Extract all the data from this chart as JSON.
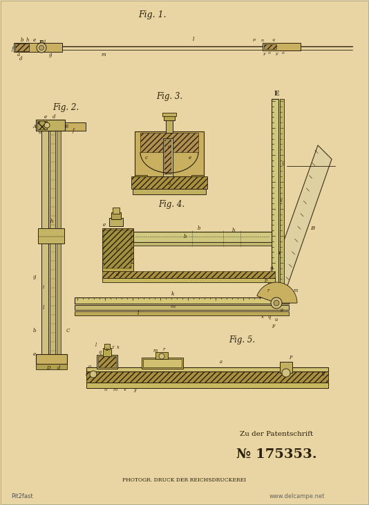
{
  "bg_color": "#e8d5a3",
  "line_color": "#2a1f0a",
  "patent_label": "Zu der Patentschrift",
  "patent_number": "№ 175353.",
  "footer": "PHOTOGR. DRUCK DER REICHSDRUCKEREI",
  "watermark": "www.delcampe.net",
  "source_label": "Pit2fast",
  "fig1_title": "Fig. 1.",
  "fig2_title": "Fig. 2.",
  "fig3_title": "Fig. 3.",
  "fig4_title": "Fig. 4.",
  "fig5_title": "Fig. 5.",
  "E_label": "E"
}
